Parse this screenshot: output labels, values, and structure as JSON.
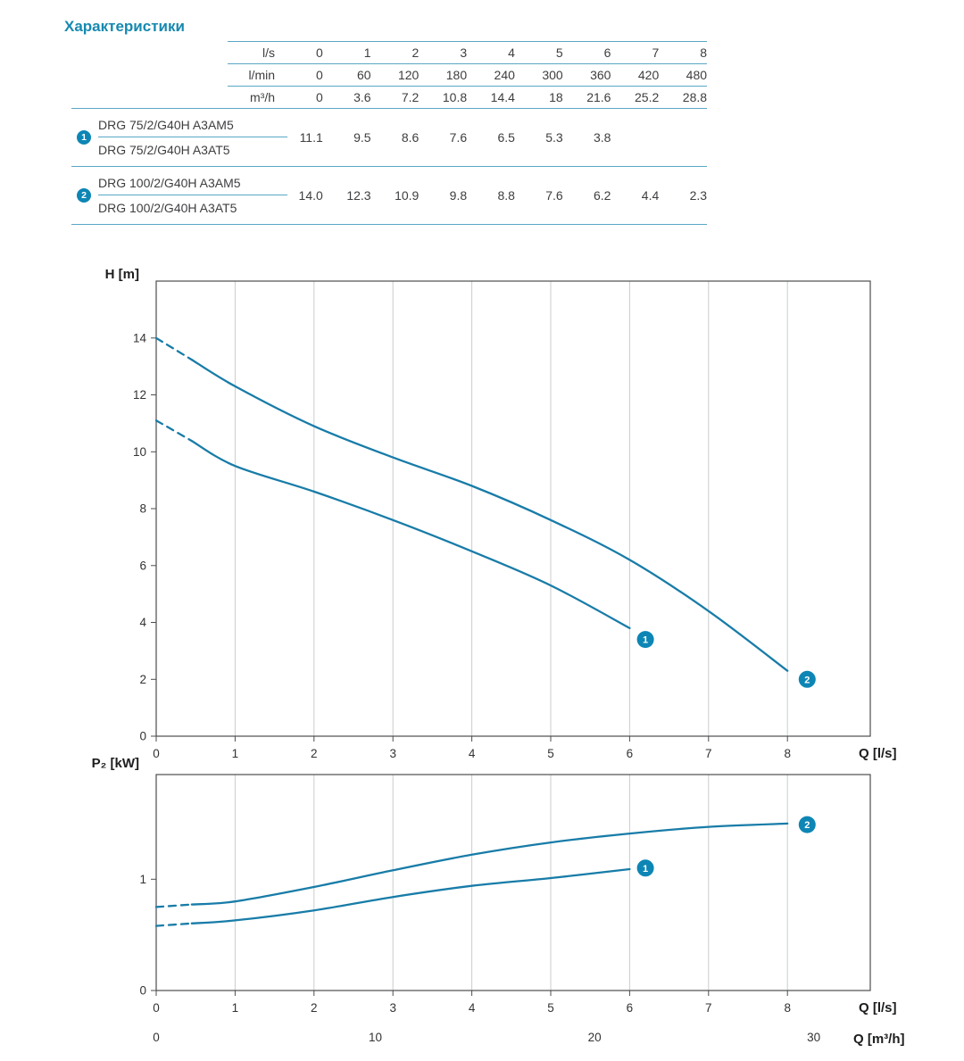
{
  "page": {
    "title": "Характеристики"
  },
  "colors": {
    "accent": "#1689b0",
    "curve": "#187ca8",
    "table_line": "#5aa7c5",
    "badge": "#0d86b5",
    "grid": "#c9ccce",
    "axis": "#4c4d4f",
    "text": "#3d3e40"
  },
  "table": {
    "header_rows": [
      {
        "unit": "l/s",
        "values": [
          "0",
          "1",
          "2",
          "3",
          "4",
          "5",
          "6",
          "7",
          "8"
        ]
      },
      {
        "unit": "l/min",
        "values": [
          "0",
          "60",
          "120",
          "180",
          "240",
          "300",
          "360",
          "420",
          "480"
        ]
      },
      {
        "unit": "m³/h",
        "values": [
          "0",
          "3.6",
          "7.2",
          "10.8",
          "14.4",
          "18",
          "21.6",
          "25.2",
          "28.8"
        ]
      }
    ],
    "groups": [
      {
        "badge": "1",
        "models": [
          "DRG 75/2/G40H A3AM5",
          "DRG 75/2/G40H A3AT5"
        ],
        "values": [
          "11.1",
          "9.5",
          "8.6",
          "7.6",
          "6.5",
          "5.3",
          "3.8",
          "",
          ""
        ]
      },
      {
        "badge": "2",
        "models": [
          "DRG 100/2/G40H A3AM5",
          "DRG 100/2/G40H A3AT5"
        ],
        "values": [
          "14.0",
          "12.3",
          "10.9",
          "9.8",
          "8.8",
          "7.6",
          "6.2",
          "4.4",
          "2.3"
        ]
      }
    ]
  },
  "chart_data": [
    {
      "name": "head-curve",
      "type": "line",
      "title": "",
      "ylabel": "H [m]",
      "xlabel": "Q [l/s]",
      "xlim": [
        0,
        9.05
      ],
      "ylim": [
        0,
        16
      ],
      "xticks": [
        0,
        1,
        2,
        3,
        4,
        5,
        6,
        7,
        8
      ],
      "yticks": [
        0,
        2,
        4,
        6,
        8,
        10,
        12,
        14
      ],
      "grid": "vertical",
      "legend_position": "none",
      "dash_until": 0.45,
      "series": [
        {
          "name": "1",
          "badge": "1",
          "x": [
            0,
            1,
            2,
            3,
            4,
            5,
            6
          ],
          "y": [
            11.1,
            9.5,
            8.6,
            7.6,
            6.5,
            5.3,
            3.8
          ],
          "badge_at": [
            6.2,
            3.4
          ]
        },
        {
          "name": "2",
          "badge": "2",
          "x": [
            0,
            1,
            2,
            3,
            4,
            5,
            6,
            7,
            8
          ],
          "y": [
            14.0,
            12.3,
            10.9,
            9.8,
            8.8,
            7.6,
            6.2,
            4.4,
            2.3
          ],
          "badge_at": [
            8.25,
            2.0
          ]
        }
      ]
    },
    {
      "name": "power-curve",
      "type": "line",
      "title": "",
      "ylabel": "P₂ [kW]",
      "xlabel": "Q [l/s]",
      "xlabel2": "Q [m³/h]",
      "x2_scale": 3.6,
      "xlim": [
        0,
        9.05
      ],
      "ylim": [
        0,
        1.94
      ],
      "xticks": [
        0,
        1,
        2,
        3,
        4,
        5,
        6,
        7,
        8
      ],
      "yticks": [
        0,
        1
      ],
      "x2ticks": [
        0,
        10,
        20,
        30
      ],
      "grid": "vertical",
      "legend_position": "none",
      "dash_until": 0.45,
      "series": [
        {
          "name": "1",
          "badge": "1",
          "x": [
            0,
            1,
            2,
            3,
            4,
            5,
            6
          ],
          "y": [
            0.58,
            0.63,
            0.72,
            0.84,
            0.94,
            1.01,
            1.09
          ],
          "badge_at": [
            6.2,
            1.1
          ]
        },
        {
          "name": "2",
          "badge": "2",
          "x": [
            0,
            1,
            2,
            3,
            4,
            5,
            6,
            7,
            8
          ],
          "y": [
            0.75,
            0.8,
            0.93,
            1.08,
            1.22,
            1.33,
            1.41,
            1.47,
            1.5
          ],
          "badge_at": [
            8.25,
            1.49
          ]
        }
      ]
    }
  ]
}
